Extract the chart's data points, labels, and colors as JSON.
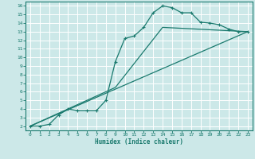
{
  "xlabel": "Humidex (Indice chaleur)",
  "bg_color": "#cce8e8",
  "grid_color": "#ffffff",
  "line_color": "#1a7a6e",
  "xlim": [
    -0.5,
    23.5
  ],
  "ylim": [
    1.5,
    16.5
  ],
  "xticks": [
    0,
    1,
    2,
    3,
    4,
    5,
    6,
    7,
    8,
    9,
    10,
    11,
    12,
    13,
    14,
    15,
    16,
    17,
    18,
    19,
    20,
    21,
    22,
    23
  ],
  "yticks": [
    2,
    3,
    4,
    5,
    6,
    7,
    8,
    9,
    10,
    11,
    12,
    13,
    14,
    15,
    16
  ],
  "line1_x": [
    0,
    1,
    2,
    3,
    4,
    5,
    6,
    7,
    8,
    9,
    10,
    11,
    12,
    13,
    14,
    15,
    16,
    17,
    18,
    19,
    20,
    21,
    22,
    23
  ],
  "line1_y": [
    2.0,
    2.0,
    2.2,
    3.3,
    4.0,
    3.8,
    3.8,
    3.8,
    5.0,
    9.5,
    12.2,
    12.5,
    13.5,
    15.2,
    16.0,
    15.8,
    15.2,
    15.2,
    14.1,
    14.0,
    13.8,
    13.3,
    13.0,
    13.0
  ],
  "line2_x": [
    0,
    23
  ],
  "line2_y": [
    2.0,
    13.0
  ],
  "line3_x": [
    0,
    9,
    14,
    23
  ],
  "line3_y": [
    2.0,
    6.5,
    13.5,
    13.0
  ]
}
